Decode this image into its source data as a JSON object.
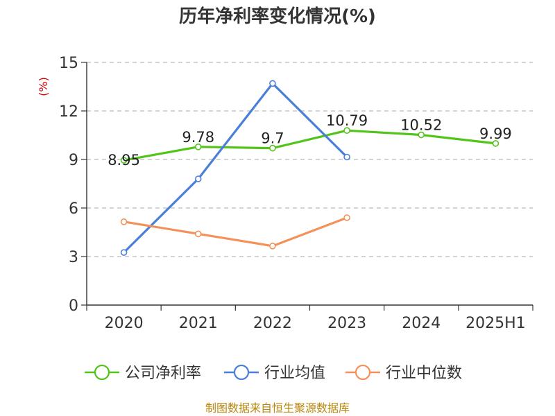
{
  "chart_data": {
    "type": "line",
    "title": "历年净利率变化情况(%)",
    "ylabel": "(%)",
    "categories": [
      "2020",
      "2021",
      "2022",
      "2023",
      "2024",
      "2025H1"
    ],
    "ylim": [
      0,
      15
    ],
    "yticks": [
      "0",
      "3",
      "6",
      "9",
      "12",
      "15"
    ],
    "grid": true,
    "legend_position": "bottom",
    "series": [
      {
        "name": "公司净利率",
        "color": "#52c41a",
        "values": [
          8.95,
          9.78,
          9.7,
          10.79,
          10.52,
          9.99
        ],
        "labels": [
          "8.95",
          "9.78",
          "9.7",
          "10.79",
          "10.52",
          "9.99"
        ]
      },
      {
        "name": "行业均值",
        "color": "#4a7fd9",
        "values": [
          3.25,
          7.8,
          13.7,
          9.15,
          null,
          null
        ]
      },
      {
        "name": "行业中位数",
        "color": "#f4915a",
        "values": [
          5.15,
          4.4,
          3.65,
          5.4,
          null,
          null
        ]
      }
    ]
  },
  "source": "制图数据来自恒生聚源数据库"
}
